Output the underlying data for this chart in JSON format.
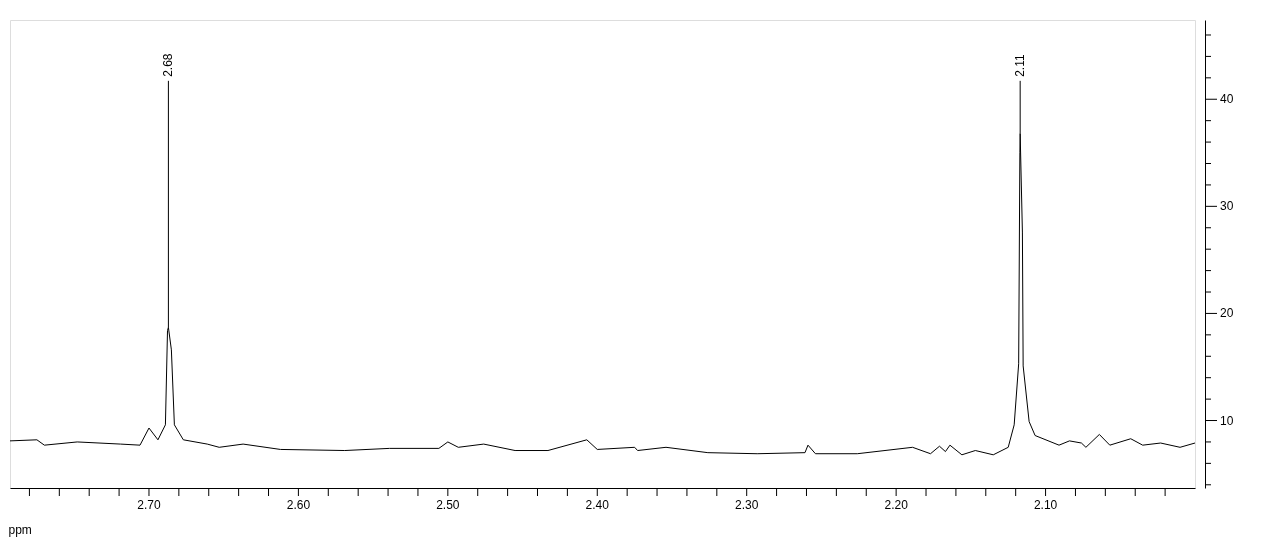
{
  "chart_data": {
    "type": "line",
    "xlabel": "ppm",
    "x": [
      2.793,
      2.775,
      2.77,
      2.748,
      2.719,
      2.706,
      2.7,
      2.694,
      2.689,
      2.6876,
      2.687,
      2.685,
      2.683,
      2.677,
      2.661,
      2.653,
      2.637,
      2.612,
      2.569,
      2.539,
      2.506,
      2.5,
      2.493,
      2.476,
      2.455,
      2.433,
      2.407,
      2.4,
      2.375,
      2.373,
      2.354,
      2.326,
      2.293,
      2.261,
      2.259,
      2.254,
      2.226,
      2.189,
      2.177,
      2.171,
      2.167,
      2.164,
      2.156,
      2.147,
      2.135,
      2.125,
      2.121,
      2.118,
      2.1172,
      2.117,
      2.1155,
      2.115,
      2.111,
      2.107,
      2.091,
      2.084,
      2.076,
      2.073,
      2.064,
      2.057,
      2.043,
      2.035,
      2.023,
      2.01,
      2.0
    ],
    "series": [
      {
        "color": "#000000",
        "values": [
          8.1,
          8.2,
          7.7,
          8.0,
          7.8,
          7.7,
          9.3,
          8.2,
          9.6,
          18.4,
          18.7,
          16.6,
          9.6,
          8.2,
          7.8,
          7.5,
          7.8,
          7.3,
          7.2,
          7.4,
          7.4,
          8.0,
          7.5,
          7.8,
          7.2,
          7.2,
          8.2,
          7.3,
          7.5,
          7.2,
          7.5,
          7.0,
          6.9,
          7.0,
          7.7,
          6.9,
          6.9,
          7.5,
          6.9,
          7.6,
          7.1,
          7.7,
          6.8,
          7.2,
          6.8,
          7.5,
          9.6,
          15.3,
          35.0,
          36.8,
          27.6,
          15.1,
          9.9,
          8.6,
          7.7,
          8.1,
          7.9,
          7.5,
          8.7,
          7.7,
          8.3,
          7.7,
          7.9,
          7.5,
          7.9
        ]
      }
    ],
    "xlim": [
      2.793,
      2.0
    ],
    "ylim": [
      3.7,
      47.4
    ],
    "xticks": [
      {
        "value": 2.78,
        "label": null
      },
      {
        "value": 2.76,
        "label": null
      },
      {
        "value": 2.74,
        "label": null
      },
      {
        "value": 2.72,
        "label": null
      },
      {
        "value": 2.7,
        "label": "2.70"
      },
      {
        "value": 2.68,
        "label": null
      },
      {
        "value": 2.66,
        "label": null
      },
      {
        "value": 2.64,
        "label": null
      },
      {
        "value": 2.62,
        "label": null
      },
      {
        "value": 2.6,
        "label": "2.60"
      },
      {
        "value": 2.58,
        "label": null
      },
      {
        "value": 2.56,
        "label": null
      },
      {
        "value": 2.54,
        "label": null
      },
      {
        "value": 2.52,
        "label": null
      },
      {
        "value": 2.5,
        "label": "2.50"
      },
      {
        "value": 2.48,
        "label": null
      },
      {
        "value": 2.46,
        "label": null
      },
      {
        "value": 2.44,
        "label": null
      },
      {
        "value": 2.42,
        "label": null
      },
      {
        "value": 2.4,
        "label": "2.40"
      },
      {
        "value": 2.38,
        "label": null
      },
      {
        "value": 2.36,
        "label": null
      },
      {
        "value": 2.34,
        "label": null
      },
      {
        "value": 2.32,
        "label": null
      },
      {
        "value": 2.3,
        "label": "2.30"
      },
      {
        "value": 2.28,
        "label": null
      },
      {
        "value": 2.26,
        "label": null
      },
      {
        "value": 2.24,
        "label": null
      },
      {
        "value": 2.22,
        "label": null
      },
      {
        "value": 2.2,
        "label": "2.20"
      },
      {
        "value": 2.18,
        "label": null
      },
      {
        "value": 2.16,
        "label": null
      },
      {
        "value": 2.14,
        "label": null
      },
      {
        "value": 2.12,
        "label": null
      },
      {
        "value": 2.1,
        "label": "2.10"
      },
      {
        "value": 2.08,
        "label": null
      },
      {
        "value": 2.06,
        "label": null
      },
      {
        "value": 2.04,
        "label": null
      },
      {
        "value": 2.02,
        "label": null
      }
    ],
    "yticks": [
      {
        "value": 4,
        "label": null
      },
      {
        "value": 6,
        "label": null
      },
      {
        "value": 8,
        "label": null
      },
      10,
      {
        "value": 12,
        "label": null
      },
      {
        "value": 14,
        "label": null
      },
      {
        "value": 16,
        "label": null
      },
      {
        "value": 18,
        "label": null
      },
      20,
      {
        "value": 22,
        "label": null
      },
      {
        "value": 24,
        "label": null
      },
      {
        "value": 26,
        "label": null
      },
      {
        "value": 28,
        "label": null
      },
      30,
      {
        "value": 32,
        "label": null
      },
      {
        "value": 34,
        "label": null
      },
      {
        "value": 36,
        "label": null
      },
      {
        "value": 38,
        "label": null
      },
      40,
      {
        "value": 42,
        "label": null
      },
      {
        "value": 44,
        "label": null
      },
      {
        "value": 46,
        "label": null
      }
    ],
    "annotations": [
      {
        "text": "2.68",
        "x": 2.687,
        "y": 18.7
      },
      {
        "text": "2.11",
        "x": 2.117,
        "y": 36.8
      }
    ],
    "grid": false,
    "marker": "none",
    "line_style": "solid"
  }
}
